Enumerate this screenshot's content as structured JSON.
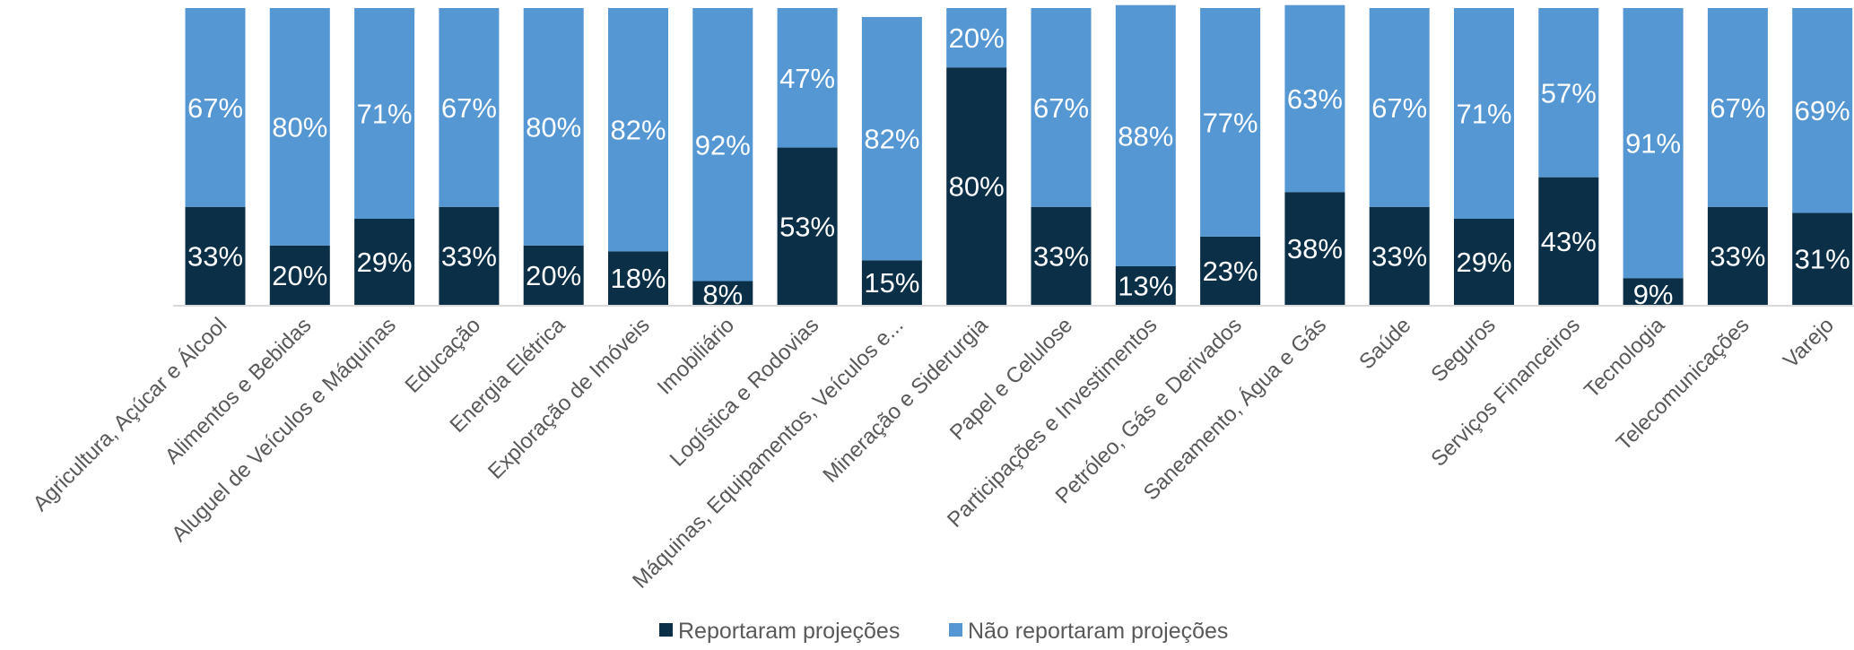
{
  "chart_data": {
    "type": "bar",
    "stacked": true,
    "percent": true,
    "categories": [
      "Agricultura, Açúcar e Álcool",
      "Alimentos e Bebidas",
      "Aluguel de Veículos e Máquinas",
      "Educação",
      "Energia Elétrica",
      "Exploração de Imóveis",
      "Imobiliário",
      "Logística e Rodovias",
      "Máquinas, Equipamentos, Veículos e...",
      "Mineração e Siderurgia",
      "Papel e Celulose",
      "Participações e Investimentos",
      "Petróleo, Gás e Derivados",
      "Saneamento, Água e Gás",
      "Saúde",
      "Seguros",
      "Serviços Financeiros",
      "Tecnologia",
      "Telecomunicações",
      "Varejo"
    ],
    "series": [
      {
        "name": "Reportaram projeções",
        "color": "#0b2f47",
        "values": [
          33,
          20,
          29,
          33,
          20,
          18,
          8,
          53,
          15,
          80,
          33,
          13,
          23,
          38,
          33,
          29,
          43,
          9,
          33,
          31
        ],
        "labels": [
          "33%",
          "20%",
          "29%",
          "33%",
          "20%",
          "18%",
          "8%",
          "53%",
          "15%",
          "80%",
          "33%",
          "13%",
          "23%",
          "38%",
          "33%",
          "29%",
          "43%",
          "9%",
          "33%",
          "31%"
        ]
      },
      {
        "name": "Não reportaram projeções",
        "color": "#5497d3",
        "values": [
          67,
          80,
          71,
          67,
          80,
          82,
          92,
          47,
          82,
          20,
          67,
          88,
          77,
          63,
          67,
          71,
          57,
          91,
          67,
          69
        ],
        "labels": [
          "67%",
          "80%",
          "71%",
          "67%",
          "80%",
          "82%",
          "92%",
          "47%",
          "82%",
          "20%",
          "67%",
          "88%",
          "77%",
          "63%",
          "67%",
          "71%",
          "57%",
          "91%",
          "67%",
          "69%"
        ]
      }
    ],
    "ylim": [
      0,
      100
    ],
    "grid": false,
    "legend_position": "bottom"
  }
}
